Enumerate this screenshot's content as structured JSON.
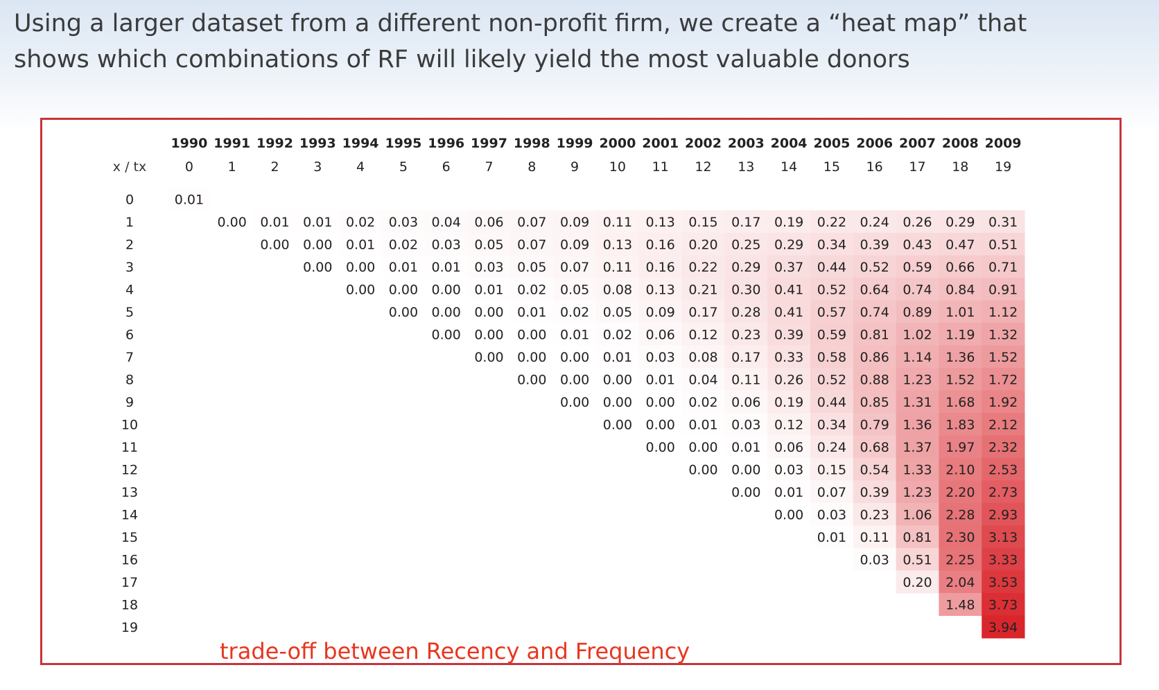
{
  "slide": {
    "title_line1": "Using a larger dataset from a different non-profit firm, we create a “heat map” that",
    "title_line2": "shows which combinations of RF will likely yield the most valuable donors",
    "annotation": "trade-off between Recency and Frequency"
  },
  "colors": {
    "frame": "#c8333b",
    "heat_max": "#d9262c",
    "annotation": "#e8361f"
  },
  "chart_data": {
    "type": "heatmap",
    "corner_label": "x / tx",
    "years": [
      "1990",
      "1991",
      "1992",
      "1993",
      "1994",
      "1995",
      "1996",
      "1997",
      "1998",
      "1999",
      "2000",
      "2001",
      "2002",
      "2003",
      "2004",
      "2005",
      "2006",
      "2007",
      "2008",
      "2009"
    ],
    "columns": [
      "0",
      "1",
      "2",
      "3",
      "4",
      "5",
      "6",
      "7",
      "8",
      "9",
      "10",
      "11",
      "12",
      "13",
      "14",
      "15",
      "16",
      "17",
      "18",
      "19"
    ],
    "rows": [
      "0",
      "1",
      "2",
      "3",
      "4",
      "5",
      "6",
      "7",
      "8",
      "9",
      "10",
      "11",
      "12",
      "13",
      "14",
      "15",
      "16",
      "17",
      "18",
      "19"
    ],
    "value_max": 3.94,
    "values": [
      [
        "0.01",
        null,
        null,
        null,
        null,
        null,
        null,
        null,
        null,
        null,
        null,
        null,
        null,
        null,
        null,
        null,
        null,
        null,
        null,
        null
      ],
      [
        null,
        "0.00",
        "0.01",
        "0.01",
        "0.02",
        "0.03",
        "0.04",
        "0.06",
        "0.07",
        "0.09",
        "0.11",
        "0.13",
        "0.15",
        "0.17",
        "0.19",
        "0.22",
        "0.24",
        "0.26",
        "0.29",
        "0.31"
      ],
      [
        null,
        null,
        "0.00",
        "0.00",
        "0.01",
        "0.02",
        "0.03",
        "0.05",
        "0.07",
        "0.09",
        "0.13",
        "0.16",
        "0.20",
        "0.25",
        "0.29",
        "0.34",
        "0.39",
        "0.43",
        "0.47",
        "0.51"
      ],
      [
        null,
        null,
        null,
        "0.00",
        "0.00",
        "0.01",
        "0.01",
        "0.03",
        "0.05",
        "0.07",
        "0.11",
        "0.16",
        "0.22",
        "0.29",
        "0.37",
        "0.44",
        "0.52",
        "0.59",
        "0.66",
        "0.71"
      ],
      [
        null,
        null,
        null,
        null,
        "0.00",
        "0.00",
        "0.00",
        "0.01",
        "0.02",
        "0.05",
        "0.08",
        "0.13",
        "0.21",
        "0.30",
        "0.41",
        "0.52",
        "0.64",
        "0.74",
        "0.84",
        "0.91"
      ],
      [
        null,
        null,
        null,
        null,
        null,
        "0.00",
        "0.00",
        "0.00",
        "0.01",
        "0.02",
        "0.05",
        "0.09",
        "0.17",
        "0.28",
        "0.41",
        "0.57",
        "0.74",
        "0.89",
        "1.01",
        "1.12"
      ],
      [
        null,
        null,
        null,
        null,
        null,
        null,
        "0.00",
        "0.00",
        "0.00",
        "0.01",
        "0.02",
        "0.06",
        "0.12",
        "0.23",
        "0.39",
        "0.59",
        "0.81",
        "1.02",
        "1.19",
        "1.32"
      ],
      [
        null,
        null,
        null,
        null,
        null,
        null,
        null,
        "0.00",
        "0.00",
        "0.00",
        "0.01",
        "0.03",
        "0.08",
        "0.17",
        "0.33",
        "0.58",
        "0.86",
        "1.14",
        "1.36",
        "1.52"
      ],
      [
        null,
        null,
        null,
        null,
        null,
        null,
        null,
        null,
        "0.00",
        "0.00",
        "0.00",
        "0.01",
        "0.04",
        "0.11",
        "0.26",
        "0.52",
        "0.88",
        "1.23",
        "1.52",
        "1.72"
      ],
      [
        null,
        null,
        null,
        null,
        null,
        null,
        null,
        null,
        null,
        "0.00",
        "0.00",
        "0.00",
        "0.02",
        "0.06",
        "0.19",
        "0.44",
        "0.85",
        "1.31",
        "1.68",
        "1.92"
      ],
      [
        null,
        null,
        null,
        null,
        null,
        null,
        null,
        null,
        null,
        null,
        "0.00",
        "0.00",
        "0.01",
        "0.03",
        "0.12",
        "0.34",
        "0.79",
        "1.36",
        "1.83",
        "2.12"
      ],
      [
        null,
        null,
        null,
        null,
        null,
        null,
        null,
        null,
        null,
        null,
        null,
        "0.00",
        "0.00",
        "0.01",
        "0.06",
        "0.24",
        "0.68",
        "1.37",
        "1.97",
        "2.32"
      ],
      [
        null,
        null,
        null,
        null,
        null,
        null,
        null,
        null,
        null,
        null,
        null,
        null,
        "0.00",
        "0.00",
        "0.03",
        "0.15",
        "0.54",
        "1.33",
        "2.10",
        "2.53"
      ],
      [
        null,
        null,
        null,
        null,
        null,
        null,
        null,
        null,
        null,
        null,
        null,
        null,
        null,
        "0.00",
        "0.01",
        "0.07",
        "0.39",
        "1.23",
        "2.20",
        "2.73"
      ],
      [
        null,
        null,
        null,
        null,
        null,
        null,
        null,
        null,
        null,
        null,
        null,
        null,
        null,
        null,
        "0.00",
        "0.03",
        "0.23",
        "1.06",
        "2.28",
        "2.93"
      ],
      [
        null,
        null,
        null,
        null,
        null,
        null,
        null,
        null,
        null,
        null,
        null,
        null,
        null,
        null,
        null,
        "0.01",
        "0.11",
        "0.81",
        "2.30",
        "3.13"
      ],
      [
        null,
        null,
        null,
        null,
        null,
        null,
        null,
        null,
        null,
        null,
        null,
        null,
        null,
        null,
        null,
        null,
        "0.03",
        "0.51",
        "2.25",
        "3.33"
      ],
      [
        null,
        null,
        null,
        null,
        null,
        null,
        null,
        null,
        null,
        null,
        null,
        null,
        null,
        null,
        null,
        null,
        null,
        "0.20",
        "2.04",
        "3.53"
      ],
      [
        null,
        null,
        null,
        null,
        null,
        null,
        null,
        null,
        null,
        null,
        null,
        null,
        null,
        null,
        null,
        null,
        null,
        null,
        "1.48",
        "3.73"
      ],
      [
        null,
        null,
        null,
        null,
        null,
        null,
        null,
        null,
        null,
        null,
        null,
        null,
        null,
        null,
        null,
        null,
        null,
        null,
        null,
        "3.94"
      ]
    ]
  }
}
